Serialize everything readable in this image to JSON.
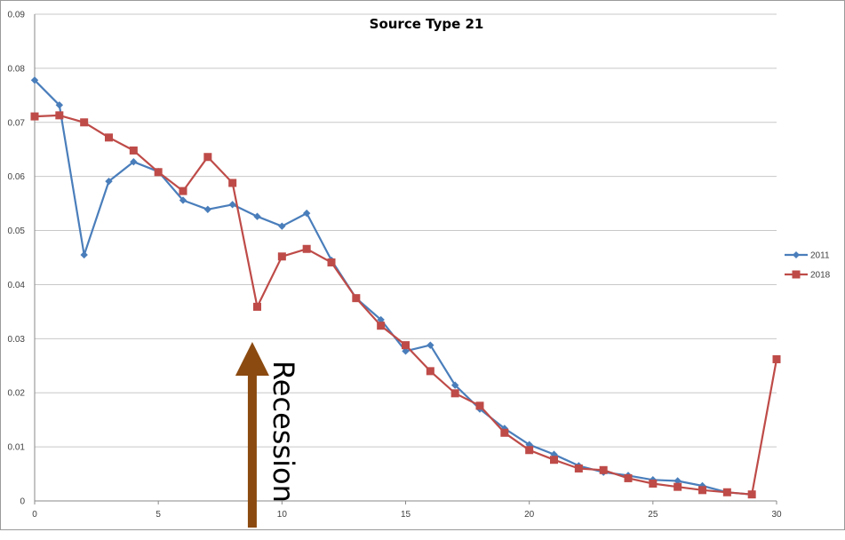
{
  "chart_data": {
    "type": "line",
    "title": "Source Type 21",
    "xlabel": "",
    "ylabel": "",
    "xlim": [
      0,
      30
    ],
    "ylim": [
      0,
      0.09
    ],
    "x_ticks": [
      "0",
      "5",
      "10",
      "15",
      "20",
      "25",
      "30"
    ],
    "y_ticks": [
      "0",
      "0.01",
      "0.02",
      "0.03",
      "0.04",
      "0.05",
      "0.06",
      "0.07",
      "0.08",
      "0.09"
    ],
    "grid": "horizontal",
    "legend_position": "right",
    "x": [
      0,
      1,
      2,
      3,
      4,
      5,
      6,
      7,
      8,
      9,
      10,
      11,
      12,
      13,
      14,
      15,
      16,
      17,
      18,
      19,
      20,
      21,
      22,
      23,
      24,
      25,
      26,
      27,
      28,
      29,
      30
    ],
    "series": [
      {
        "name": "2011",
        "color": "#4a7ebb",
        "marker": "diamond",
        "values": [
          0.0778,
          0.0732,
          0.0455,
          0.0591,
          0.0627,
          0.0609,
          0.0556,
          0.0539,
          0.0548,
          0.0526,
          0.0508,
          0.0532,
          0.0445,
          0.0375,
          0.0335,
          0.0277,
          0.0288,
          0.0214,
          0.017,
          0.0134,
          0.0104,
          0.0086,
          0.0065,
          0.0053,
          0.0047,
          0.0039,
          0.0037,
          0.0028,
          0.0016,
          0.0012,
          null
        ]
      },
      {
        "name": "2018",
        "color": "#be4b48",
        "marker": "square",
        "values": [
          0.0711,
          0.0713,
          0.07,
          0.0672,
          0.0648,
          0.0608,
          0.0573,
          0.0636,
          0.0588,
          0.0359,
          0.0452,
          0.0466,
          0.0441,
          0.0375,
          0.0324,
          0.0288,
          0.024,
          0.0199,
          0.0176,
          0.0126,
          0.0094,
          0.0076,
          0.006,
          0.0057,
          0.0042,
          0.0032,
          0.0026,
          0.002,
          0.0016,
          0.0012,
          0.0262
        ]
      }
    ],
    "annotation": {
      "text": "Recession",
      "x": 8.8,
      "arrow_color": "#8b4a10"
    }
  }
}
